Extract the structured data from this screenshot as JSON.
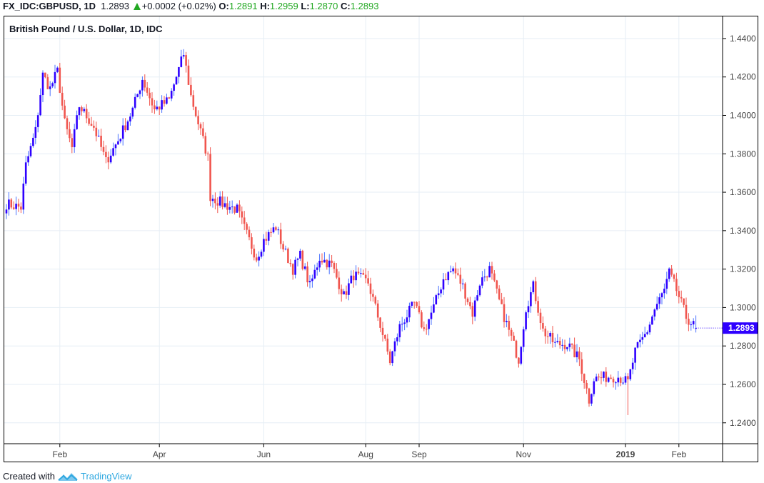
{
  "header": {
    "symbol": "FX_IDC:GBPUSD, 1D",
    "last": "1.2893",
    "change": "+0.0002 (+0.02%)",
    "o_label": "O:",
    "o": "1.2891",
    "h_label": "H:",
    "h": "1.2959",
    "l_label": "L:",
    "l": "1.2870",
    "c_label": "C:",
    "c": "1.2893"
  },
  "footer": {
    "created_with": "Created with",
    "brand": "TradingView"
  },
  "colors": {
    "up": "#2e00ff",
    "up_wick": "#4a72ff",
    "down": "#f0554e",
    "grid": "#e6eef5",
    "price_tag": "#2e00ff"
  },
  "chart_data": {
    "type": "candlestick",
    "title": "British Pound / U.S. Dollar, 1D, IDC",
    "ylim": [
      1.2295,
      1.4515
    ],
    "y_ticks": [
      "1.4400",
      "1.4200",
      "1.4000",
      "1.3800",
      "1.3600",
      "1.3400",
      "1.3200",
      "1.3000",
      "1.2800",
      "1.2600",
      "1.2400"
    ],
    "last_price_label": "1.2893",
    "x_ticks": [
      {
        "label": "Feb",
        "index": 22
      },
      {
        "label": "Apr",
        "index": 63
      },
      {
        "label": "Jun",
        "index": 106
      },
      {
        "label": "Aug",
        "index": 148
      },
      {
        "label": "Sep",
        "index": 170
      },
      {
        "label": "Nov",
        "index": 213
      },
      {
        "label": "2019",
        "index": 255,
        "bold": true
      },
      {
        "label": "Feb",
        "index": 277
      }
    ],
    "num_bars": 285,
    "close_waypoints": [
      [
        0,
        1.354
      ],
      [
        6,
        1.352
      ],
      [
        8,
        1.374
      ],
      [
        12,
        1.392
      ],
      [
        15,
        1.421
      ],
      [
        18,
        1.414
      ],
      [
        21,
        1.423
      ],
      [
        24,
        1.396
      ],
      [
        27,
        1.383
      ],
      [
        30,
        1.405
      ],
      [
        36,
        1.394
      ],
      [
        41,
        1.376
      ],
      [
        46,
        1.387
      ],
      [
        52,
        1.403
      ],
      [
        56,
        1.419
      ],
      [
        61,
        1.403
      ],
      [
        67,
        1.408
      ],
      [
        73,
        1.432
      ],
      [
        76,
        1.41
      ],
      [
        79,
        1.396
      ],
      [
        83,
        1.378
      ],
      [
        84,
        1.358
      ],
      [
        89,
        1.354
      ],
      [
        95,
        1.351
      ],
      [
        99,
        1.338
      ],
      [
        103,
        1.326
      ],
      [
        106,
        1.335
      ],
      [
        111,
        1.342
      ],
      [
        114,
        1.331
      ],
      [
        118,
        1.32
      ],
      [
        121,
        1.327
      ],
      [
        125,
        1.311
      ],
      [
        129,
        1.326
      ],
      [
        134,
        1.322
      ],
      [
        139,
        1.306
      ],
      [
        143,
        1.317
      ],
      [
        149,
        1.313
      ],
      [
        154,
        1.291
      ],
      [
        158,
        1.272
      ],
      [
        162,
        1.29
      ],
      [
        168,
        1.302
      ],
      [
        172,
        1.288
      ],
      [
        176,
        1.3
      ],
      [
        180,
        1.315
      ],
      [
        184,
        1.32
      ],
      [
        188,
        1.311
      ],
      [
        192,
        1.297
      ],
      [
        195,
        1.313
      ],
      [
        199,
        1.32
      ],
      [
        204,
        1.299
      ],
      [
        208,
        1.284
      ],
      [
        211,
        1.273
      ],
      [
        214,
        1.3
      ],
      [
        217,
        1.311
      ],
      [
        221,
        1.288
      ],
      [
        226,
        1.281
      ],
      [
        231,
        1.281
      ],
      [
        236,
        1.273
      ],
      [
        240,
        1.252
      ],
      [
        242,
        1.263
      ],
      [
        248,
        1.264
      ],
      [
        252,
        1.264
      ],
      [
        256,
        1.261
      ],
      [
        259,
        1.277
      ],
      [
        264,
        1.288
      ],
      [
        267,
        1.299
      ],
      [
        271,
        1.309
      ],
      [
        273,
        1.318
      ],
      [
        276,
        1.309
      ],
      [
        280,
        1.295
      ],
      [
        284,
        1.2893
      ]
    ],
    "last_bar": {
      "open": 1.2891,
      "high": 1.2959,
      "low": 1.287,
      "close": 1.2893
    },
    "notable_lows": [
      [
        256,
        1.244
      ]
    ]
  }
}
